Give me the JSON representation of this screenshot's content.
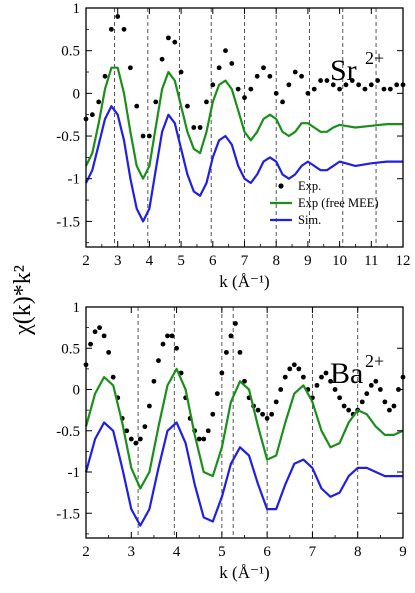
{
  "figure": {
    "ylabel": "χ(k)*k²",
    "colors": {
      "exp": "#000000",
      "exp_free": "#1a8f1a",
      "sim": "#1f1fe6",
      "axis": "#000000",
      "guide": "#444444"
    }
  },
  "chart_data": [
    {
      "type": "line",
      "panel_label": "Sr",
      "panel_label_sup": "2+",
      "xlabel": "k (Å⁻¹)",
      "xlim": [
        2,
        12
      ],
      "ylim": [
        -1.8,
        1.0
      ],
      "xticks": [
        "2",
        "3",
        "4",
        "5",
        "6",
        "7",
        "8",
        "9",
        "10",
        "11",
        "12"
      ],
      "yticks": [
        "1",
        "0.5",
        "0",
        "-0.5",
        "-1",
        "-1.5"
      ],
      "ytick_values": [
        1,
        0.5,
        0,
        -0.5,
        -1,
        -1.5
      ],
      "guide_lines_x": [
        2.9,
        3.95,
        4.95,
        5.95,
        7.0,
        8.0,
        9.05,
        10.1,
        11.15
      ],
      "legend": {
        "position": "bottom-right",
        "entries": [
          "Exp.",
          "Exp (free MEE)",
          "Sim."
        ]
      },
      "series": [
        {
          "name": "Exp.",
          "style": "dots",
          "color": "#000000",
          "x": [
            2.0,
            2.2,
            2.4,
            2.6,
            2.8,
            3.0,
            3.2,
            3.4,
            3.6,
            3.8,
            4.0,
            4.2,
            4.4,
            4.6,
            4.8,
            5.0,
            5.2,
            5.4,
            5.6,
            5.8,
            6.0,
            6.2,
            6.4,
            6.6,
            6.8,
            7.0,
            7.2,
            7.4,
            7.6,
            7.8,
            8.0,
            8.2,
            8.4,
            8.6,
            8.8,
            9.0,
            9.2,
            9.4,
            9.6,
            9.8,
            10.0,
            10.2,
            10.4,
            10.6,
            10.8,
            11.0,
            11.2,
            11.4,
            11.6,
            11.8,
            12.0
          ],
          "y": [
            -0.3,
            -0.25,
            -0.1,
            0.2,
            0.75,
            0.9,
            0.75,
            0.3,
            -0.15,
            -0.5,
            -0.5,
            -0.1,
            0.4,
            0.65,
            0.6,
            0.25,
            -0.15,
            -0.4,
            -0.4,
            -0.1,
            0.1,
            0.3,
            0.5,
            0.35,
            0.05,
            -0.05,
            0.05,
            0.2,
            0.3,
            0.2,
            0.0,
            -0.1,
            0.1,
            0.25,
            0.2,
            0.0,
            0.05,
            0.15,
            0.15,
            0.1,
            0.05,
            0.1,
            0.15,
            0.1,
            0.05,
            0.1,
            0.15,
            0.05,
            0.05,
            0.1,
            0.1
          ]
        },
        {
          "name": "Exp (free MEE)",
          "style": "line",
          "color": "#1a8f1a",
          "x": [
            2.0,
            2.2,
            2.4,
            2.6,
            2.8,
            3.0,
            3.2,
            3.4,
            3.6,
            3.8,
            4.0,
            4.2,
            4.4,
            4.6,
            4.8,
            5.0,
            5.2,
            5.4,
            5.6,
            5.8,
            6.0,
            6.2,
            6.4,
            6.6,
            6.8,
            7.0,
            7.2,
            7.4,
            7.6,
            7.8,
            8.0,
            8.2,
            8.4,
            8.6,
            8.8,
            9.0,
            9.2,
            9.4,
            9.6,
            9.8,
            10.0,
            10.5,
            11.0,
            11.5,
            12.0
          ],
          "y": [
            -0.85,
            -0.7,
            -0.35,
            0.05,
            0.3,
            0.3,
            0.0,
            -0.45,
            -0.85,
            -1.0,
            -0.85,
            -0.4,
            0.05,
            0.25,
            0.15,
            -0.15,
            -0.45,
            -0.65,
            -0.7,
            -0.45,
            -0.1,
            0.1,
            0.15,
            0.05,
            -0.2,
            -0.45,
            -0.55,
            -0.45,
            -0.3,
            -0.25,
            -0.3,
            -0.45,
            -0.5,
            -0.45,
            -0.35,
            -0.35,
            -0.4,
            -0.45,
            -0.45,
            -0.4,
            -0.37,
            -0.4,
            -0.38,
            -0.36,
            -0.36
          ]
        },
        {
          "name": "Sim.",
          "style": "line",
          "color": "#1f1fe6",
          "x": [
            2.0,
            2.2,
            2.4,
            2.6,
            2.8,
            3.0,
            3.2,
            3.4,
            3.6,
            3.8,
            4.0,
            4.2,
            4.4,
            4.6,
            4.8,
            5.0,
            5.2,
            5.4,
            5.6,
            5.8,
            6.0,
            6.2,
            6.4,
            6.6,
            6.8,
            7.0,
            7.2,
            7.4,
            7.6,
            7.8,
            8.0,
            8.2,
            8.4,
            8.6,
            8.8,
            9.0,
            9.2,
            9.4,
            9.6,
            9.8,
            10.0,
            10.5,
            11.0,
            11.5,
            12.0
          ],
          "y": [
            -1.05,
            -0.9,
            -0.6,
            -0.3,
            -0.15,
            -0.25,
            -0.55,
            -1.0,
            -1.35,
            -1.5,
            -1.35,
            -0.9,
            -0.45,
            -0.25,
            -0.35,
            -0.65,
            -0.95,
            -1.15,
            -1.2,
            -1.05,
            -0.75,
            -0.55,
            -0.5,
            -0.6,
            -0.85,
            -1.0,
            -1.05,
            -0.95,
            -0.8,
            -0.75,
            -0.8,
            -0.95,
            -1.0,
            -0.95,
            -0.85,
            -0.8,
            -0.85,
            -0.9,
            -0.9,
            -0.85,
            -0.8,
            -0.85,
            -0.82,
            -0.8,
            -0.8
          ]
        }
      ]
    },
    {
      "type": "line",
      "panel_label": "Ba",
      "panel_label_sup": "2+",
      "xlabel": "k (Å⁻¹)",
      "xlim": [
        2,
        9
      ],
      "ylim": [
        -1.8,
        1.0
      ],
      "xticks": [
        "2",
        "3",
        "4",
        "5",
        "6",
        "7",
        "8",
        "9"
      ],
      "yticks": [
        "1",
        "0.5",
        "0",
        "-0.5",
        "-1",
        "-1.5"
      ],
      "ytick_values": [
        1,
        0.5,
        0,
        -0.5,
        -1,
        -1.5
      ],
      "guide_lines_x": [
        3.15,
        3.95,
        5.0,
        5.25,
        6.0,
        7.0,
        8.0
      ],
      "legend": null,
      "series": [
        {
          "name": "",
          "style": "dots",
          "color": "#000000",
          "x": [
            2.0,
            2.1,
            2.2,
            2.3,
            2.4,
            2.5,
            2.6,
            2.7,
            2.8,
            2.9,
            3.0,
            3.1,
            3.2,
            3.3,
            3.4,
            3.5,
            3.6,
            3.7,
            3.8,
            3.9,
            4.0,
            4.1,
            4.2,
            4.3,
            4.4,
            4.5,
            4.6,
            4.7,
            4.8,
            4.9,
            5.0,
            5.1,
            5.2,
            5.3,
            5.4,
            5.5,
            5.6,
            5.7,
            5.8,
            5.9,
            6.0,
            6.1,
            6.2,
            6.3,
            6.4,
            6.5,
            6.6,
            6.7,
            6.8,
            6.9,
            7.0,
            7.1,
            7.2,
            7.3,
            7.4,
            7.5,
            7.6,
            7.7,
            7.8,
            7.9,
            8.0,
            8.1,
            8.2,
            8.3,
            8.4,
            8.5,
            8.6,
            8.7,
            8.8,
            8.9,
            9.0
          ],
          "y": [
            0.3,
            0.55,
            0.7,
            0.75,
            0.65,
            0.45,
            0.15,
            -0.1,
            -0.35,
            -0.5,
            -0.6,
            -0.65,
            -0.6,
            -0.45,
            -0.2,
            0.1,
            0.35,
            0.55,
            0.65,
            0.65,
            0.5,
            0.2,
            -0.1,
            -0.35,
            -0.5,
            -0.6,
            -0.6,
            -0.5,
            -0.3,
            -0.05,
            0.2,
            0.45,
            0.65,
            0.8,
            0.45,
            0.1,
            -0.1,
            -0.2,
            -0.25,
            -0.3,
            -0.35,
            -0.3,
            -0.15,
            0.0,
            0.15,
            0.25,
            0.3,
            0.25,
            0.15,
            0.0,
            -0.1,
            0.05,
            0.15,
            0.2,
            0.1,
            0.0,
            -0.1,
            -0.2,
            -0.25,
            -0.3,
            -0.25,
            -0.15,
            -0.05,
            0.05,
            0.1,
            0.0,
            -0.15,
            -0.25,
            -0.2,
            0.0,
            0.15
          ]
        },
        {
          "name": "",
          "style": "line",
          "color": "#1a8f1a",
          "x": [
            2.0,
            2.2,
            2.4,
            2.6,
            2.8,
            3.0,
            3.2,
            3.4,
            3.6,
            3.8,
            4.0,
            4.2,
            4.4,
            4.6,
            4.8,
            5.0,
            5.2,
            5.4,
            5.6,
            5.8,
            6.0,
            6.2,
            6.4,
            6.6,
            6.8,
            7.0,
            7.2,
            7.4,
            7.6,
            7.8,
            8.0,
            8.2,
            8.4,
            8.6,
            8.8,
            9.0
          ],
          "y": [
            -0.45,
            -0.05,
            0.15,
            0.05,
            -0.4,
            -0.95,
            -1.2,
            -1.0,
            -0.45,
            0.05,
            0.25,
            0.0,
            -0.55,
            -1.0,
            -1.05,
            -0.7,
            -0.15,
            0.1,
            0.0,
            -0.45,
            -0.85,
            -0.8,
            -0.4,
            -0.05,
            0.05,
            -0.15,
            -0.5,
            -0.7,
            -0.65,
            -0.4,
            -0.25,
            -0.3,
            -0.45,
            -0.55,
            -0.55,
            -0.5
          ]
        },
        {
          "name": "",
          "style": "line",
          "color": "#1f1fe6",
          "x": [
            2.0,
            2.2,
            2.4,
            2.6,
            2.8,
            3.0,
            3.2,
            3.4,
            3.6,
            3.8,
            4.0,
            4.2,
            4.4,
            4.6,
            4.8,
            5.0,
            5.2,
            5.4,
            5.6,
            5.8,
            6.0,
            6.2,
            6.4,
            6.6,
            6.8,
            7.0,
            7.2,
            7.4,
            7.6,
            7.8,
            8.0,
            8.2,
            8.4,
            8.6,
            8.8,
            9.0
          ],
          "y": [
            -1.0,
            -0.6,
            -0.4,
            -0.5,
            -0.95,
            -1.45,
            -1.65,
            -1.45,
            -0.95,
            -0.5,
            -0.4,
            -0.65,
            -1.15,
            -1.55,
            -1.6,
            -1.3,
            -0.9,
            -0.7,
            -0.8,
            -1.15,
            -1.45,
            -1.45,
            -1.15,
            -0.9,
            -0.85,
            -0.95,
            -1.2,
            -1.3,
            -1.25,
            -1.05,
            -0.95,
            -0.95,
            -1.0,
            -1.05,
            -1.05,
            -1.05
          ]
        }
      ]
    }
  ]
}
